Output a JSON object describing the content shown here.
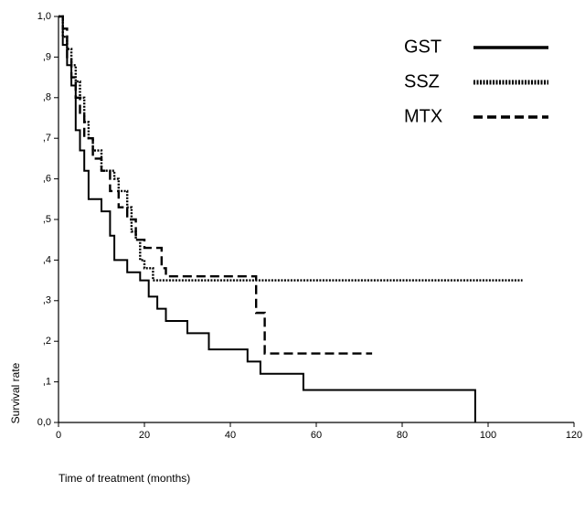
{
  "chart_data": {
    "type": "line",
    "step": "post",
    "x_label": "Time of treatment (months)",
    "y_label": "Survival rate",
    "xlim": [
      0,
      120
    ],
    "ylim": [
      0,
      1
    ],
    "xticks": [
      0,
      20,
      40,
      60,
      80,
      100,
      120
    ],
    "yticks": [
      {
        "value": 0,
        "label": "0,0"
      },
      {
        "value": 0.1,
        "label": ",1"
      },
      {
        "value": 0.2,
        "label": ",2"
      },
      {
        "value": 0.3,
        "label": ",3"
      },
      {
        "value": 0.4,
        "label": ",4"
      },
      {
        "value": 0.5,
        "label": ",5"
      },
      {
        "value": 0.6,
        "label": ",6"
      },
      {
        "value": 0.7,
        "label": ",7"
      },
      {
        "value": 0.8,
        "label": ",8"
      },
      {
        "value": 0.9,
        "label": ",9"
      },
      {
        "value": 1,
        "label": "1,0"
      }
    ],
    "series": [
      {
        "name": "GST",
        "color": "#000000",
        "style": "solid",
        "x": [
          0,
          1,
          2,
          3,
          4,
          5,
          6,
          7,
          10,
          12,
          13,
          16,
          19,
          21,
          23,
          25,
          30,
          35,
          44,
          47,
          57,
          97,
          97
        ],
        "y": [
          1,
          0.93,
          0.88,
          0.83,
          0.72,
          0.67,
          0.62,
          0.55,
          0.52,
          0.46,
          0.4,
          0.37,
          0.35,
          0.31,
          0.28,
          0.25,
          0.22,
          0.18,
          0.15,
          0.12,
          0.08,
          0.08,
          0
        ]
      },
      {
        "name": "SSZ",
        "color": "#000000",
        "style": "dotted",
        "x": [
          0,
          1,
          2,
          3,
          4,
          5,
          6,
          7,
          8,
          10,
          13,
          14,
          16,
          17,
          18,
          19,
          20,
          22,
          108
        ],
        "y": [
          1,
          0.95,
          0.92,
          0.88,
          0.84,
          0.8,
          0.74,
          0.7,
          0.67,
          0.62,
          0.6,
          0.57,
          0.53,
          0.47,
          0.45,
          0.4,
          0.38,
          0.35,
          0.35
        ]
      },
      {
        "name": "MTX",
        "color": "#000000",
        "style": "dashed",
        "x": [
          0,
          1,
          2,
          3,
          4,
          5,
          6,
          8,
          10,
          12,
          14,
          16,
          18,
          20,
          24,
          25,
          45,
          46,
          48,
          73
        ],
        "y": [
          1,
          0.97,
          0.9,
          0.85,
          0.8,
          0.76,
          0.7,
          0.65,
          0.62,
          0.57,
          0.53,
          0.5,
          0.45,
          0.43,
          0.38,
          0.36,
          0.36,
          0.27,
          0.17,
          0.17
        ]
      }
    ]
  }
}
